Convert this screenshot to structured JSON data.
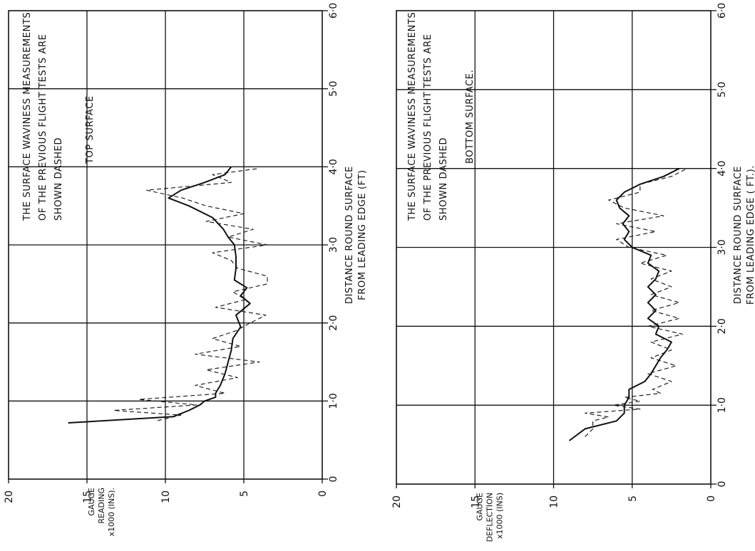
{
  "chart_data": [
    {
      "type": "line",
      "note_lines": [
        "THE SURFACE WAVINESS MEASUREMENTS",
        "OF THE PREVIOUS FLIGHT TESTS ARE",
        "SHOWN DASHED"
      ],
      "surface_label": "TOP SURFACE",
      "xlabel_lines": [
        "DISTANCE ROUND SURFACE",
        "FROM LEADING EDGE (FT)"
      ],
      "ylabel_lines": [
        "GAUGE",
        "READING",
        "x1000 (INS)."
      ],
      "xlim": [
        0,
        6
      ],
      "ylim": [
        0,
        20
      ],
      "x_ticks": [
        "0",
        "1·0",
        "2·0",
        "3·0",
        "4·0",
        "5·0",
        "6·0"
      ],
      "y_ticks": [
        "0",
        "5",
        "10",
        "15",
        "20"
      ],
      "series": [
        {
          "style": "solid",
          "x": [
            0.72,
            0.8,
            0.88,
            0.95,
            1.0,
            1.05,
            1.1,
            1.2,
            1.35,
            1.5,
            1.65,
            1.8,
            1.95,
            2.1,
            2.25,
            2.35,
            2.45,
            2.55,
            2.7,
            2.85,
            3.0,
            3.1,
            3.2,
            3.35,
            3.5,
            3.6,
            3.7,
            3.8,
            3.9
          ],
          "y": [
            16.2,
            9.5,
            8.5,
            7.8,
            7.5,
            6.8,
            6.8,
            6.5,
            6.2,
            6.0,
            5.8,
            5.7,
            5.2,
            5.5,
            4.6,
            5.2,
            4.8,
            5.6,
            5.5,
            5.5,
            5.6,
            6.0,
            6.3,
            7.0,
            8.5,
            9.8,
            9.0,
            7.5,
            6.2
          ],
          "endpoint": [
            4.0,
            5.8
          ]
        },
        {
          "style": "dashed",
          "x": [
            0.75,
            0.82,
            0.88,
            0.95,
            1.02,
            1.1,
            1.2,
            1.3,
            1.4,
            1.5,
            1.6,
            1.7,
            1.8,
            1.9,
            2.0,
            2.1,
            2.2,
            2.3,
            2.4,
            2.5,
            2.6,
            2.7,
            2.8,
            2.9,
            3.0,
            3.1,
            3.2,
            3.3,
            3.4,
            3.5,
            3.6,
            3.7,
            3.8,
            3.9,
            3.98
          ],
          "y": [
            10.5,
            9.0,
            13.3,
            8.0,
            11.7,
            6.2,
            8.1,
            5.4,
            7.4,
            4.0,
            8.1,
            5.2,
            7.0,
            5.5,
            4.6,
            3.6,
            6.8,
            4.9,
            5.7,
            3.5,
            3.5,
            5.4,
            5.8,
            7.0,
            3.5,
            6.0,
            4.4,
            7.4,
            5.0,
            7.4,
            8.9,
            11.2,
            5.8,
            7.0,
            4.0
          ]
        }
      ]
    },
    {
      "type": "line",
      "note_lines": [
        "THE SURFACE WAVINESS MEASUREMENTS",
        "OF THE PREVIOUS FLIGHT TESTS ARE",
        "SHOWN DASHED"
      ],
      "surface_label": "BOTTOM SURFACE.",
      "xlabel_lines": [
        "DISTANCE ROUND SURFACE",
        "FROM LEADING EDGE ( FT.)."
      ],
      "ylabel_lines": [
        "GAUGE",
        "DEFLECTION",
        "x1000 (INS)"
      ],
      "xlim": [
        0,
        6
      ],
      "ylim": [
        0,
        20
      ],
      "x_ticks": [
        "0",
        "1·0",
        "2·0",
        "3·0",
        "4·0",
        "5·0",
        "6·0"
      ],
      "y_ticks": [
        "0",
        "5",
        "10",
        "15",
        "20"
      ],
      "series": [
        {
          "style": "solid",
          "x": [
            0.55,
            0.7,
            0.8,
            0.9,
            1.0,
            1.1,
            1.2,
            1.3,
            1.4,
            1.5,
            1.6,
            1.7,
            1.8,
            1.9,
            2.0,
            2.1,
            2.2,
            2.3,
            2.4,
            2.5,
            2.6,
            2.7,
            2.8,
            2.9,
            3.0,
            3.1,
            3.2,
            3.3,
            3.4,
            3.5,
            3.6,
            3.7,
            3.8,
            3.9,
            4.0
          ],
          "y": [
            9.0,
            8.0,
            6.0,
            5.5,
            5.5,
            5.2,
            5.2,
            4.2,
            3.8,
            3.5,
            3.2,
            2.8,
            2.5,
            3.5,
            3.3,
            4.0,
            3.5,
            4.0,
            3.5,
            4.0,
            3.5,
            3.3,
            4.0,
            3.8,
            5.0,
            5.5,
            5.2,
            5.6,
            5.2,
            5.8,
            6.0,
            5.5,
            4.5,
            3.0,
            2.0
          ]
        },
        {
          "style": "dashed",
          "x": [
            0.6,
            0.7,
            0.8,
            0.85,
            0.9,
            0.95,
            1.0,
            1.05,
            1.1,
            1.15,
            1.2,
            1.3,
            1.4,
            1.5,
            1.6,
            1.7,
            1.8,
            1.9,
            2.0,
            2.1,
            2.2,
            2.3,
            2.4,
            2.5,
            2.6,
            2.7,
            2.8,
            2.9,
            3.0,
            3.1,
            3.2,
            3.3,
            3.4,
            3.5,
            3.6,
            3.7,
            3.8,
            3.9,
            4.0
          ],
          "y": [
            8.0,
            7.5,
            7.5,
            6.5,
            8.0,
            4.5,
            6.2,
            4.5,
            5.5,
            3.2,
            3.7,
            2.5,
            4.0,
            2.2,
            3.8,
            2.5,
            3.8,
            1.8,
            4.0,
            2.0,
            3.8,
            2.0,
            3.8,
            2.5,
            3.8,
            2.5,
            4.5,
            2.8,
            5.2,
            6.0,
            3.5,
            6.0,
            3.0,
            5.5,
            6.5,
            4.5,
            4.5,
            2.5,
            1.5
          ]
        }
      ]
    }
  ]
}
